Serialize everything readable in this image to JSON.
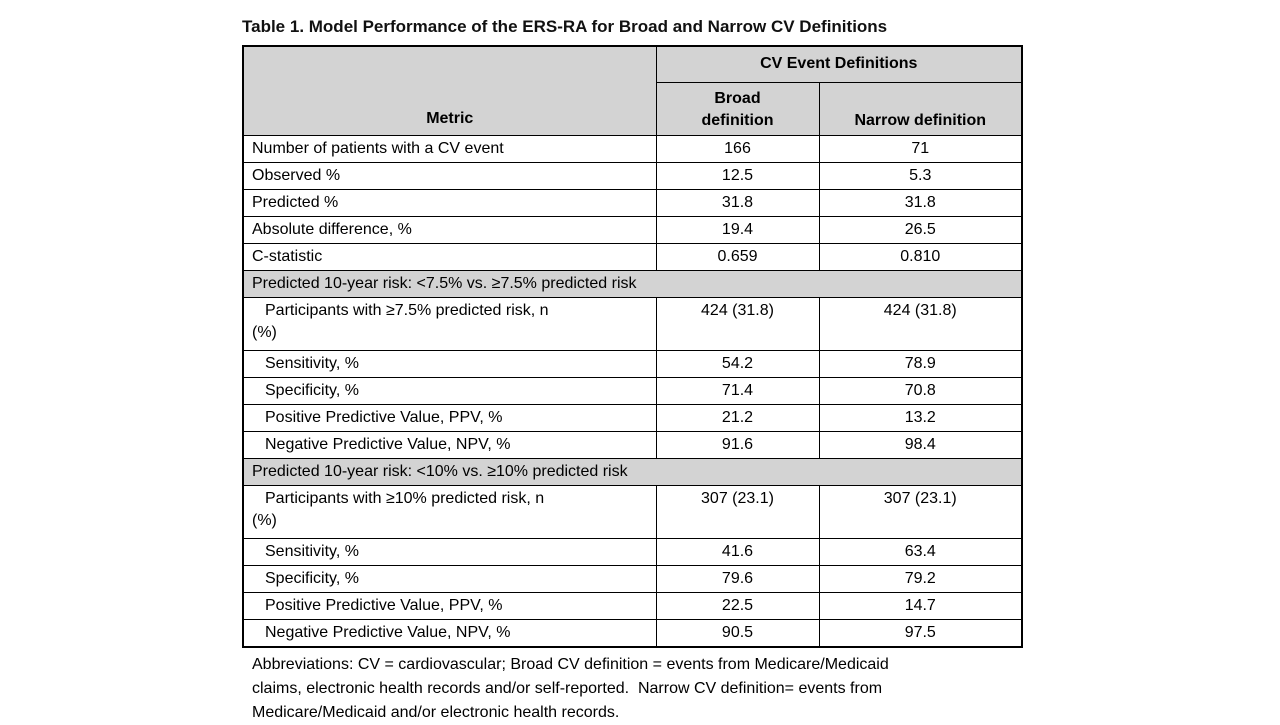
{
  "title": "Table 1. Model Performance of the ERS-RA for Broad and Narrow CV Definitions",
  "colors": {
    "header_fill": "#d3d3d3",
    "border": "#000000",
    "text": "#000000",
    "background": "#ffffff"
  },
  "table": {
    "header": {
      "metric_label": "Metric",
      "group_label": "CV Event Definitions",
      "broad_line1": "Broad",
      "broad_line2": "definition",
      "narrow_label": "Narrow definition"
    },
    "rows": [
      {
        "type": "data",
        "metric": "Number of patients with a CV event",
        "broad": "166",
        "narrow": "71"
      },
      {
        "type": "data",
        "metric": "Observed %",
        "broad": "12.5",
        "narrow": "5.3"
      },
      {
        "type": "data",
        "metric": "Predicted %",
        "broad": "31.8",
        "narrow": "31.8"
      },
      {
        "type": "data",
        "metric": "Absolute difference, %",
        "broad": "19.4",
        "narrow": "26.5"
      },
      {
        "type": "data",
        "metric": "C-statistic",
        "broad": "0.659",
        "narrow": "0.810"
      },
      {
        "type": "section",
        "label": "Predicted 10-year risk: <7.5% vs. ≥7.5% predicted risk"
      },
      {
        "type": "data",
        "indent": true,
        "metric": "Participants with ≥7.5% predicted risk, n",
        "metric_line2": "(%)",
        "broad": "424 (31.8)",
        "narrow": "424 (31.8)"
      },
      {
        "type": "data",
        "indent": true,
        "metric": "Sensitivity, %",
        "broad": "54.2",
        "narrow": "78.9"
      },
      {
        "type": "data",
        "indent": true,
        "metric": "Specificity, %",
        "broad": "71.4",
        "narrow": "70.8"
      },
      {
        "type": "data",
        "indent": true,
        "metric": "Positive Predictive Value, PPV, %",
        "broad": "21.2",
        "narrow": "13.2"
      },
      {
        "type": "data",
        "indent": true,
        "metric": "Negative Predictive Value, NPV, %",
        "broad": "91.6",
        "narrow": "98.4"
      },
      {
        "type": "section",
        "label": "Predicted 10-year risk: <10% vs. ≥10% predicted risk"
      },
      {
        "type": "data",
        "indent": true,
        "metric": "Participants with ≥10% predicted risk, n",
        "metric_line2": "(%)",
        "broad": "307 (23.1)",
        "narrow": "307 (23.1)"
      },
      {
        "type": "data",
        "indent": true,
        "metric": "Sensitivity, %",
        "broad": "41.6",
        "narrow": "63.4"
      },
      {
        "type": "data",
        "indent": true,
        "metric": "Specificity, %",
        "broad": "79.6",
        "narrow": "79.2"
      },
      {
        "type": "data",
        "indent": true,
        "metric": "Positive Predictive Value, PPV, %",
        "broad": "22.5",
        "narrow": "14.7"
      },
      {
        "type": "data",
        "indent": true,
        "metric": "Negative Predictive Value, NPV, %",
        "broad": "90.5",
        "narrow": "97.5"
      }
    ]
  },
  "footnote": {
    "lines": [
      "Abbreviations: CV = cardiovascular; Broad CV definition = events from Medicare/Medicaid",
      "claims, electronic health records and/or self-reported.  Narrow CV definition= events from",
      "Medicare/Medicaid and/or electronic health records."
    ]
  }
}
